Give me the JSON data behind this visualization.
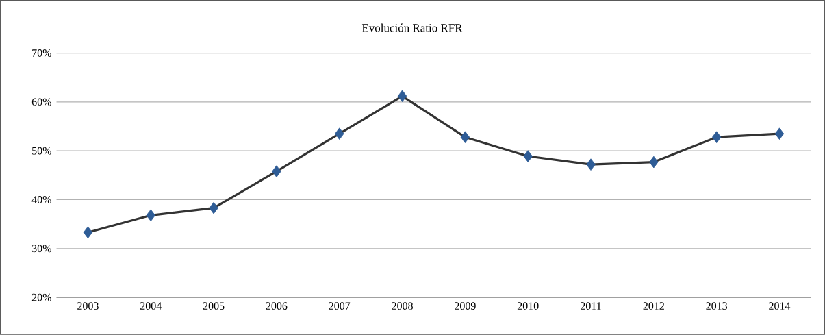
{
  "chart_data": {
    "type": "line",
    "title": "Evolución  Ratio  RFR",
    "categories": [
      "2003",
      "2004",
      "2005",
      "2006",
      "2007",
      "2008",
      "2009",
      "2010",
      "2011",
      "2012",
      "2013",
      "2014"
    ],
    "series": [
      {
        "color": "#333333",
        "colors": [
          "#2e5c96",
          "#2e5c96",
          "#2e5c96",
          "#2e5c96",
          "#2e5c96",
          "#2e5c96",
          "#2e5c96",
          "#2e5c96",
          "#2e5c96",
          "#2e5c96",
          "#2e5c96",
          "#2e5c96"
        ],
        "values": [
          33.3,
          36.8,
          38.3,
          45.8,
          53.5,
          61.2,
          52.8,
          48.9,
          47.2,
          47.7,
          52.8,
          53.5
        ]
      }
    ],
    "ylim": [
      20,
      70
    ],
    "yticks": [
      {
        "value": 20,
        "label": "20%"
      },
      {
        "value": 30,
        "label": "30%"
      },
      {
        "value": 40,
        "label": "40%"
      },
      {
        "value": 50,
        "label": "50%"
      },
      {
        "value": 60,
        "label": "60%"
      },
      {
        "value": 70,
        "label": "70%"
      }
    ],
    "grid": "y",
    "marker": "diamond",
    "line_style": "solid"
  }
}
